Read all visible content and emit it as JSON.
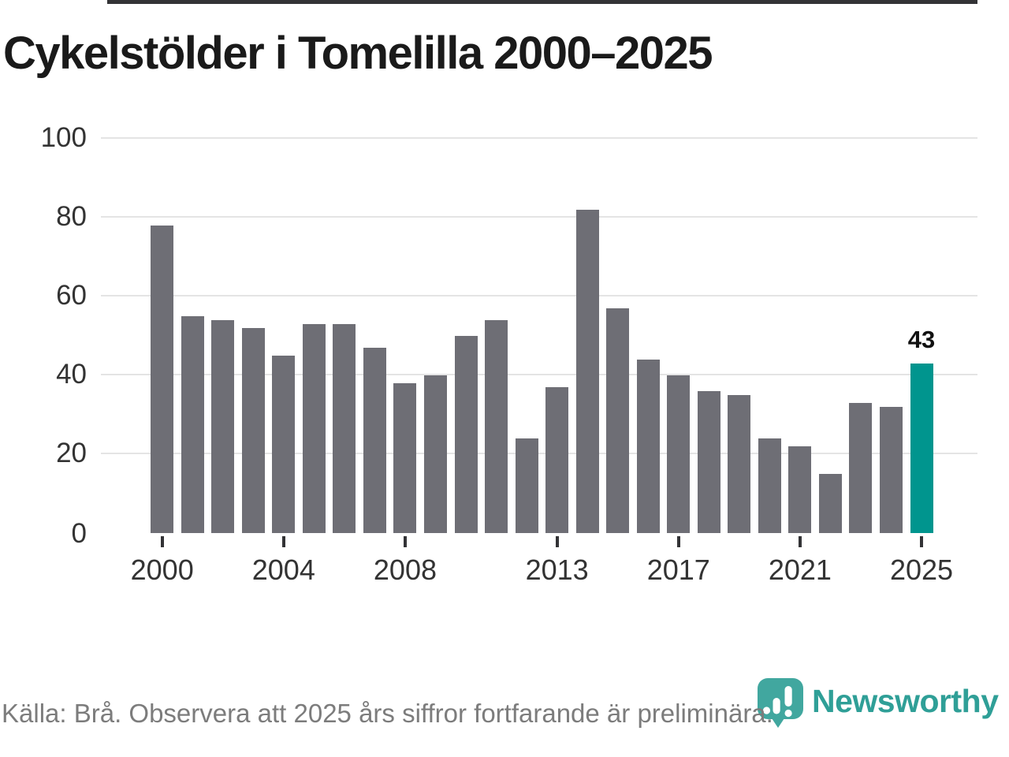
{
  "title": "Cykelstölder i Tomelilla 2000–2025",
  "footer": {
    "source": "Källa: Brå. Observera att 2025 års siffror fortfarande är preliminära."
  },
  "logo": {
    "text": "Newsworthy",
    "mark_icon": "newsworthy-pin-barchart-icon"
  },
  "chart_data": {
    "type": "bar",
    "title": "Cykelstölder i Tomelilla 2000–2025",
    "categories": [
      2000,
      2001,
      2002,
      2003,
      2004,
      2005,
      2006,
      2007,
      2008,
      2009,
      2010,
      2011,
      2012,
      2013,
      2014,
      2015,
      2016,
      2017,
      2018,
      2019,
      2020,
      2021,
      2022,
      2023,
      2024,
      2025
    ],
    "values": [
      78,
      55,
      54,
      52,
      45,
      53,
      53,
      47,
      38,
      40,
      50,
      54,
      24,
      37,
      82,
      57,
      44,
      40,
      36,
      35,
      24,
      22,
      15,
      33,
      32,
      43
    ],
    "ylim": [
      0,
      100
    ],
    "yticks": [
      0,
      20,
      40,
      60,
      80,
      100
    ],
    "xtick_labels": [
      "2000",
      "2004",
      "2008",
      "2013",
      "2017",
      "2021",
      "2025"
    ],
    "grid": "horizontal",
    "legend": "none",
    "highlight": {
      "category": 2025,
      "value": 43,
      "label": "43"
    },
    "colors": {
      "bar": "#6e6e75",
      "highlight": "#00958e",
      "grid": "#e4e4e4",
      "axis": "#333336",
      "tick_label": "#333333",
      "title": "#1a1a1a",
      "footer_text": "#7c7c7c",
      "logo_text": "#2f9f97",
      "logo_mark": "#41a79f"
    }
  }
}
